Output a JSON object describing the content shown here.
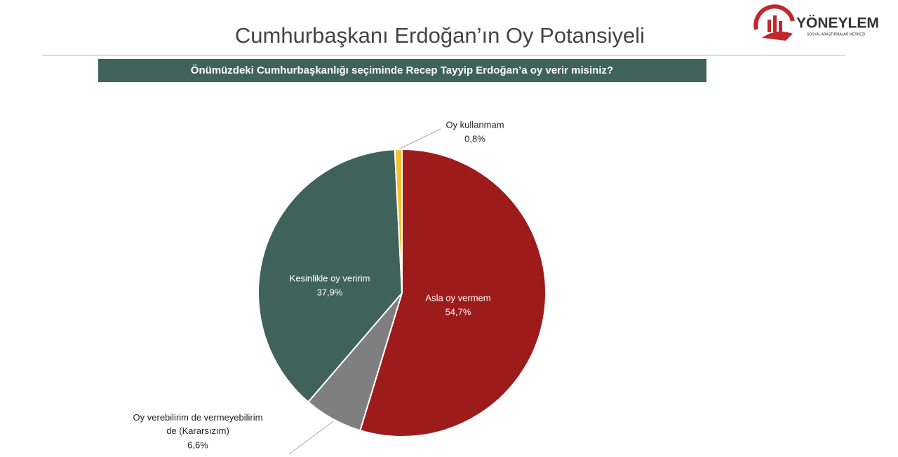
{
  "chart_data": {
    "type": "pie",
    "title": "Cumhurbaşkanı Erdoğan’ın Oy Potansiyeli",
    "subtitle": "Önümüzdeki Cumhurbaşkanlığı seçiminde Recep Tayyip Erdoğan’a oy verir misiniz?",
    "categories": [
      "Asla oy vermem",
      "Oy verebilirim de vermeyebilirim de (Kararsızım)",
      "Kesinlikle oy veririm",
      "Oy kullanmam"
    ],
    "values": [
      54.7,
      6.6,
      37.9,
      0.8
    ],
    "value_labels": [
      "54,7%",
      "6,6%",
      "37,9%",
      "0,8%"
    ],
    "colors": [
      "#9e1b1b",
      "#7f7f7f",
      "#3f635b",
      "#f2c12e"
    ]
  },
  "logo": {
    "name": "YÖNEYLEM",
    "tagline": "SOSYAL ARAŞTIRMALAR MERKEZİ"
  }
}
